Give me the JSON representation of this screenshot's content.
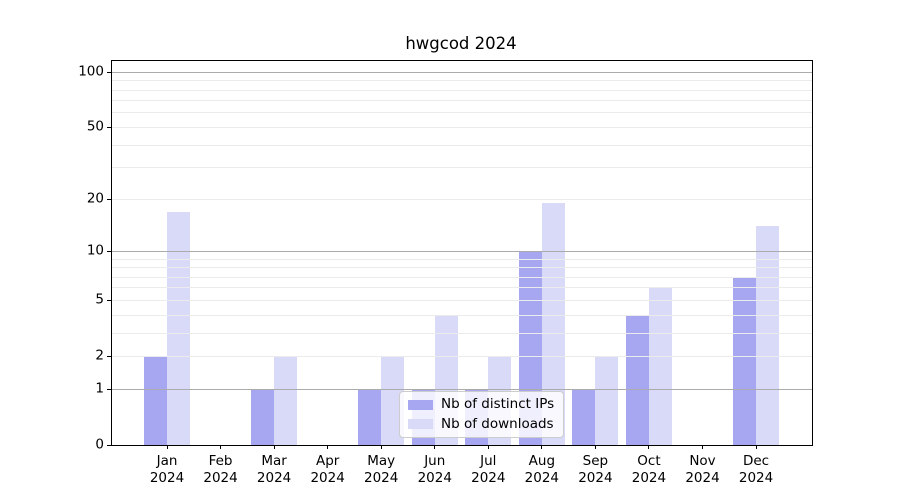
{
  "chart_data": {
    "type": "bar",
    "title": "hwgcod 2024",
    "x_categories": [
      {
        "month": "Jan",
        "year": "2024"
      },
      {
        "month": "Feb",
        "year": "2024"
      },
      {
        "month": "Mar",
        "year": "2024"
      },
      {
        "month": "Apr",
        "year": "2024"
      },
      {
        "month": "May",
        "year": "2024"
      },
      {
        "month": "Jun",
        "year": "2024"
      },
      {
        "month": "Jul",
        "year": "2024"
      },
      {
        "month": "Aug",
        "year": "2024"
      },
      {
        "month": "Sep",
        "year": "2024"
      },
      {
        "month": "Oct",
        "year": "2024"
      },
      {
        "month": "Nov",
        "year": "2024"
      },
      {
        "month": "Dec",
        "year": "2024"
      }
    ],
    "series": [
      {
        "name": "Nb of distinct IPs",
        "color": "#a6a6f1",
        "values": [
          2,
          0,
          1,
          0,
          1,
          1,
          1,
          10,
          1,
          4,
          0,
          7
        ]
      },
      {
        "name": "Nb of downloads",
        "color": "#d9d9f8",
        "values": [
          17,
          0,
          2,
          0,
          2,
          4,
          2,
          19,
          2,
          6,
          0,
          14
        ]
      }
    ],
    "y_axis": {
      "scale": "log10(value+1)",
      "tick_values": [
        0,
        1,
        2,
        5,
        10,
        20,
        50,
        100
      ],
      "major_grid_values": [
        1,
        10,
        100
      ],
      "minor_grid_values": [
        2,
        3,
        4,
        5,
        6,
        7,
        8,
        9,
        20,
        30,
        40,
        50,
        60,
        70,
        80,
        90
      ],
      "top_value": 115
    },
    "legend": {
      "position": "lower-center"
    },
    "colors": {
      "major_grid": "#ababab",
      "minor_grid": "#ebebeb",
      "spine": "#000000",
      "text": "#000000"
    }
  }
}
